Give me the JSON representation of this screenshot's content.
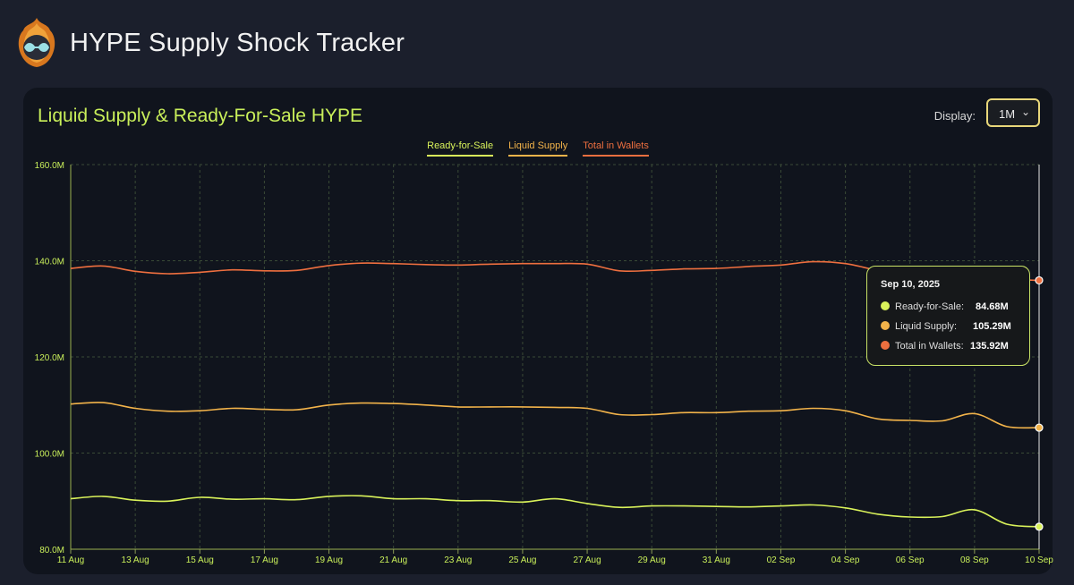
{
  "app": {
    "title": "HYPE Supply Shock Tracker"
  },
  "panel": {
    "title": "Liquid Supply & Ready-For-Sale HYPE",
    "display_label": "Display:",
    "display_value": "1M"
  },
  "colors": {
    "ready": "#d9f25a",
    "liquid": "#f2b34a",
    "wallets": "#ee6f3f",
    "accent": "#c9ef5a"
  },
  "tooltip": {
    "date": "Sep 10, 2025",
    "rows": [
      {
        "label": "Ready-for-Sale:",
        "value": "84.68M"
      },
      {
        "label": "Liquid Supply:",
        "value": "105.29M"
      },
      {
        "label": "Total in Wallets:",
        "value": "135.92M"
      }
    ]
  },
  "chart_data": {
    "type": "line",
    "title": "Liquid Supply & Ready-For-Sale HYPE",
    "x": [
      "2025-08-11",
      "2025-08-12",
      "2025-08-13",
      "2025-08-14",
      "2025-08-15",
      "2025-08-16",
      "2025-08-17",
      "2025-08-18",
      "2025-08-19",
      "2025-08-20",
      "2025-08-21",
      "2025-08-22",
      "2025-08-23",
      "2025-08-24",
      "2025-08-25",
      "2025-08-26",
      "2025-08-27",
      "2025-08-28",
      "2025-08-29",
      "2025-08-30",
      "2025-08-31",
      "2025-09-01",
      "2025-09-02",
      "2025-09-03",
      "2025-09-04",
      "2025-09-05",
      "2025-09-06",
      "2025-09-07",
      "2025-09-08",
      "2025-09-09",
      "2025-09-10"
    ],
    "x_tick_labels": [
      "11 Aug",
      "13 Aug",
      "15 Aug",
      "17 Aug",
      "19 Aug",
      "21 Aug",
      "23 Aug",
      "25 Aug",
      "27 Aug",
      "29 Aug",
      "31 Aug",
      "02 Sep",
      "04 Sep",
      "06 Sep",
      "08 Sep",
      "10 Sep"
    ],
    "y_tick_labels": [
      "80.0M",
      "100.0M",
      "120.0M",
      "140.0M",
      "160.0M"
    ],
    "ylim": [
      80,
      160
    ],
    "y_unit": "M",
    "grid": true,
    "legend_position": "top-center",
    "series": [
      {
        "name": "Ready-for-Sale",
        "values": [
          90.5,
          91.0,
          90.2,
          90.0,
          90.8,
          90.4,
          90.5,
          90.3,
          91.0,
          91.1,
          90.5,
          90.5,
          90.1,
          90.1,
          89.8,
          90.5,
          89.5,
          88.7,
          89.0,
          89.0,
          88.9,
          88.8,
          89.0,
          89.2,
          88.6,
          87.3,
          86.7,
          86.8,
          88.2,
          85.2,
          84.68
        ]
      },
      {
        "name": "Liquid Supply",
        "values": [
          110.2,
          110.5,
          109.3,
          108.7,
          108.8,
          109.3,
          109.1,
          109.0,
          110.0,
          110.4,
          110.3,
          110.0,
          109.6,
          109.6,
          109.6,
          109.5,
          109.3,
          108.0,
          108.0,
          108.4,
          108.4,
          108.7,
          108.8,
          109.3,
          108.8,
          107.1,
          106.8,
          106.7,
          108.2,
          105.5,
          105.29
        ]
      },
      {
        "name": "Total in Wallets",
        "values": [
          138.4,
          138.9,
          137.8,
          137.3,
          137.6,
          138.1,
          137.9,
          138.0,
          139.0,
          139.5,
          139.4,
          139.2,
          139.1,
          139.3,
          139.4,
          139.4,
          139.3,
          137.9,
          138.0,
          138.3,
          138.4,
          138.8,
          139.1,
          139.8,
          139.4,
          138.0,
          137.0,
          137.0,
          137.2,
          136.2,
          135.92
        ]
      }
    ]
  }
}
